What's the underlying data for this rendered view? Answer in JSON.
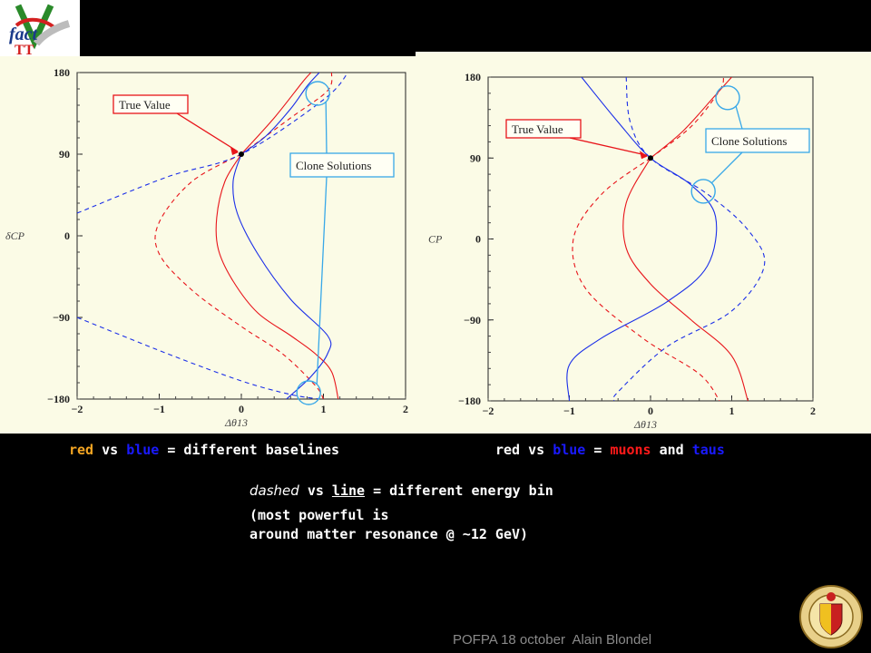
{
  "logo": {
    "text": "fact"
  },
  "chart_data": [
    {
      "type": "line",
      "panel": "left",
      "xlabel": "Δθ13",
      "ylabel": "δCP",
      "xlim": [
        -2,
        2
      ],
      "ylim": [
        -180,
        180
      ],
      "xticks": [
        "−2",
        "−1",
        "0",
        "1",
        "2"
      ],
      "yticks": [
        "180",
        "90",
        "0",
        "−90",
        "−180"
      ],
      "true_value": {
        "x": 0,
        "y": 90,
        "label": "True Value"
      },
      "clone_label": "Clone Solutions",
      "clone_points": [
        {
          "x": 0.93,
          "y": 157
        },
        {
          "x": 0.82,
          "y": -173
        }
      ],
      "series": [
        {
          "color": "red",
          "style": "solid",
          "points": [
            [
              0,
              90
            ],
            [
              -0.2,
              60
            ],
            [
              -0.3,
              20
            ],
            [
              -0.28,
              -15
            ],
            [
              -0.1,
              -50
            ],
            [
              0.2,
              -85
            ],
            [
              0.6,
              -110
            ],
            [
              0.9,
              -130
            ],
            [
              1.1,
              -150
            ],
            [
              1.18,
              -180
            ]
          ]
        },
        {
          "color": "red",
          "style": "solid",
          "points": [
            [
              0,
              90
            ],
            [
              0.4,
              130
            ],
            [
              0.75,
              170
            ],
            [
              0.85,
              180
            ]
          ]
        },
        {
          "color": "red",
          "style": "dashed",
          "points": [
            [
              0,
              90
            ],
            [
              -0.6,
              60
            ],
            [
              -1.0,
              15
            ],
            [
              -1.0,
              -20
            ],
            [
              -0.6,
              -60
            ],
            [
              0,
              -100
            ],
            [
              0.5,
              -130
            ],
            [
              0.9,
              -165
            ],
            [
              1.0,
              -180
            ]
          ]
        },
        {
          "color": "red",
          "style": "dashed",
          "points": [
            [
              0,
              90
            ],
            [
              0.6,
              130
            ],
            [
              1.05,
              160
            ],
            [
              1.1,
              180
            ]
          ]
        },
        {
          "color": "blue",
          "style": "solid",
          "points": [
            [
              0,
              90
            ],
            [
              -0.1,
              60
            ],
            [
              -0.05,
              25
            ],
            [
              0.2,
              -20
            ],
            [
              0.6,
              -70
            ],
            [
              1.05,
              -110
            ],
            [
              1.05,
              -130
            ],
            [
              0.85,
              -155
            ],
            [
              0.55,
              -180
            ]
          ]
        },
        {
          "color": "blue",
          "style": "solid",
          "points": [
            [
              0,
              90
            ],
            [
              0.3,
              110
            ],
            [
              0.6,
              140
            ],
            [
              0.8,
              165
            ],
            [
              0.95,
              180
            ]
          ]
        },
        {
          "color": "blue",
          "style": "dashed",
          "points": [
            [
              -2,
              25
            ],
            [
              -0.9,
              65
            ],
            [
              0,
              90
            ],
            [
              1.0,
              150
            ],
            [
              1.3,
              180
            ]
          ]
        },
        {
          "color": "blue",
          "style": "dashed",
          "points": [
            [
              -2,
              -90
            ],
            [
              -0.9,
              -130
            ],
            [
              0,
              -160
            ],
            [
              0.6,
              -175
            ],
            [
              0.95,
              -180
            ]
          ]
        }
      ]
    },
    {
      "type": "line",
      "panel": "right",
      "xlabel": "Δθ13",
      "ylabel": "CP",
      "xlim": [
        -2,
        2
      ],
      "ylim": [
        -180,
        180
      ],
      "xticks": [
        "−2",
        "−1",
        "0",
        "1",
        "2"
      ],
      "yticks": [
        "180",
        "90",
        "0",
        "−90",
        "−180"
      ],
      "true_value": {
        "x": 0,
        "y": 90,
        "label": "True Value"
      },
      "clone_label": "Clone Solutions",
      "clone_points": [
        {
          "x": 0.95,
          "y": 157
        },
        {
          "x": 0.65,
          "y": 53
        }
      ],
      "series": [
        {
          "color": "red",
          "style": "solid",
          "points": [
            [
              0,
              90
            ],
            [
              -0.3,
              40
            ],
            [
              -0.3,
              -10
            ],
            [
              0,
              -50
            ],
            [
              0.5,
              -90
            ],
            [
              1.0,
              -130
            ],
            [
              1.2,
              -180
            ]
          ]
        },
        {
          "color": "red",
          "style": "solid",
          "points": [
            [
              0,
              90
            ],
            [
              0.4,
              120
            ],
            [
              0.8,
              160
            ],
            [
              1.0,
              180
            ]
          ]
        },
        {
          "color": "red",
          "style": "dashed",
          "points": [
            [
              0,
              90
            ],
            [
              -0.6,
              50
            ],
            [
              -0.95,
              0
            ],
            [
              -0.8,
              -55
            ],
            [
              -0.1,
              -110
            ],
            [
              0.6,
              -150
            ],
            [
              0.85,
              -180
            ]
          ]
        },
        {
          "color": "red",
          "style": "dashed",
          "points": [
            [
              0,
              90
            ],
            [
              0.5,
              125
            ],
            [
              0.85,
              165
            ],
            [
              0.9,
              180
            ]
          ]
        },
        {
          "color": "blue",
          "style": "solid",
          "points": [
            [
              -0.85,
              180
            ],
            [
              -0.4,
              130
            ],
            [
              0,
              90
            ],
            [
              0.5,
              60
            ],
            [
              0.8,
              25
            ],
            [
              0.7,
              -30
            ],
            [
              0.2,
              -70
            ],
            [
              -0.6,
              -110
            ],
            [
              -1.0,
              -140
            ],
            [
              -1.0,
              -180
            ]
          ]
        },
        {
          "color": "blue",
          "style": "dashed",
          "points": [
            [
              -0.3,
              180
            ],
            [
              -0.25,
              130
            ],
            [
              0,
              90
            ],
            [
              0.7,
              50
            ],
            [
              1.2,
              10
            ],
            [
              1.4,
              -30
            ],
            [
              1.0,
              -80
            ],
            [
              0.2,
              -120
            ],
            [
              -0.4,
              -170
            ],
            [
              -0.45,
              -180
            ]
          ]
        }
      ]
    }
  ],
  "captions": {
    "left": {
      "red": "red",
      "vs": " vs ",
      "blue": "blue",
      "rest": " = different baselines"
    },
    "right": {
      "red": "red",
      "vs": " vs ",
      "blue": "blue",
      "eq": " = ",
      "muons": "muons",
      "and": " and ",
      "taus": "taus"
    },
    "energy": {
      "dashed": "dashed",
      "vs": " vs ",
      "line": "line",
      "rest": " = different energy bin"
    },
    "powerful_line1": "(most powerful is",
    "powerful_line2": "around matter resonance @ ~12 GeV)"
  },
  "footer": "POFPA 18 october  Alain Blondel",
  "colors": {
    "red": "#e8141a",
    "blue": "#1a2ee8",
    "panel_bg": "#fbfbe6"
  }
}
